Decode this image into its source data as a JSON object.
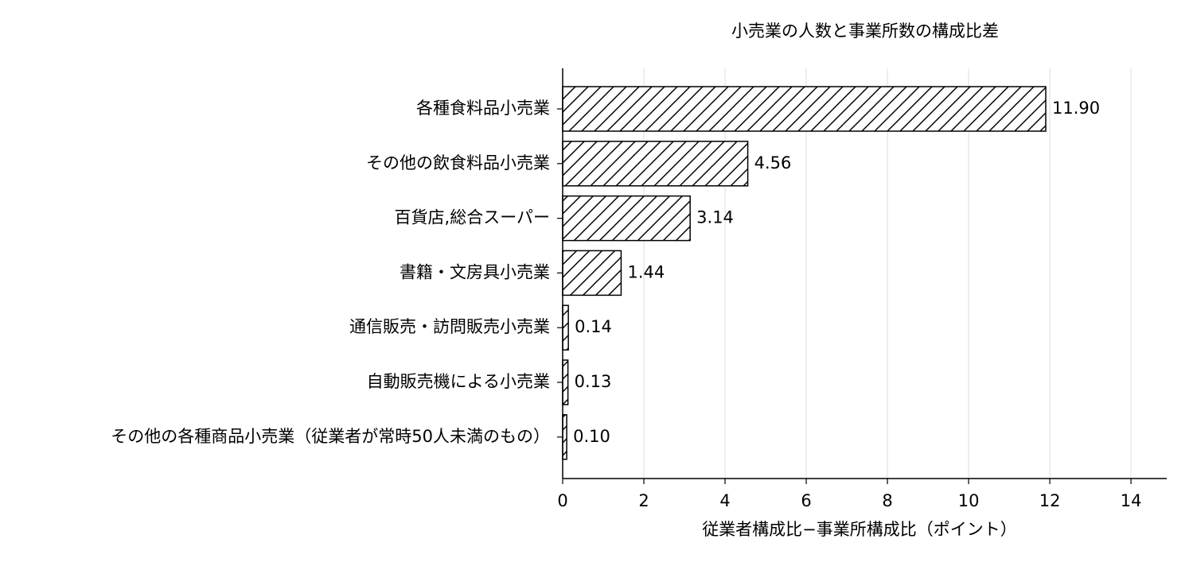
{
  "chart_data": {
    "type": "hbar",
    "title": "小売業の人数と事業所数の構成比差",
    "x_label": "従業者構成比−事業所構成比（ポイント）",
    "categories": [
      "各種食料品小売業",
      "その他の飲食料品小売業",
      "百貨店,総合スーパー",
      "書籍・文房具小売業",
      "通信販売・訪問販売小売業",
      "自動販売機による小売業",
      "その他の各種商品小売業（従業者が常時50人未満のもの）"
    ],
    "values": [
      11.9,
      4.56,
      3.14,
      1.44,
      0.14,
      0.13,
      0.1
    ],
    "value_labels": [
      "11.90",
      "4.56",
      "3.14",
      "1.44",
      "0.14",
      "0.13",
      "0.10"
    ],
    "color": "#ffffff",
    "hatch": "/",
    "xlim": [
      0,
      14.88
    ],
    "xticks": [
      0,
      2,
      4,
      6,
      8,
      10,
      12,
      14
    ],
    "grid": true
  }
}
